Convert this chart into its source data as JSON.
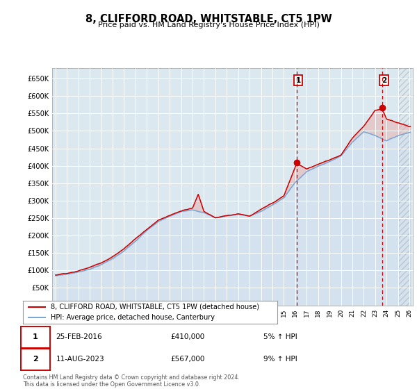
{
  "title": "8, CLIFFORD ROAD, WHITSTABLE, CT5 1PW",
  "subtitle": "Price paid vs. HM Land Registry's House Price Index (HPI)",
  "ylim": [
    0,
    680000
  ],
  "xlim_start": 1994.7,
  "xlim_end": 2026.3,
  "hpi_color": "#7aa8d4",
  "price_color": "#cc0000",
  "fill_color": "#c8d8ec",
  "marker1_x": 2016.12,
  "marker1_y": 410000,
  "marker2_x": 2023.62,
  "marker2_y": 567000,
  "legend_line1": "8, CLIFFORD ROAD, WHITSTABLE, CT5 1PW (detached house)",
  "legend_line2": "HPI: Average price, detached house, Canterbury",
  "footer": "Contains HM Land Registry data © Crown copyright and database right 2024.\nThis data is licensed under the Open Government Licence v3.0.",
  "hatch_start": 2025.0,
  "plot_bg_color": "#dce8f0"
}
